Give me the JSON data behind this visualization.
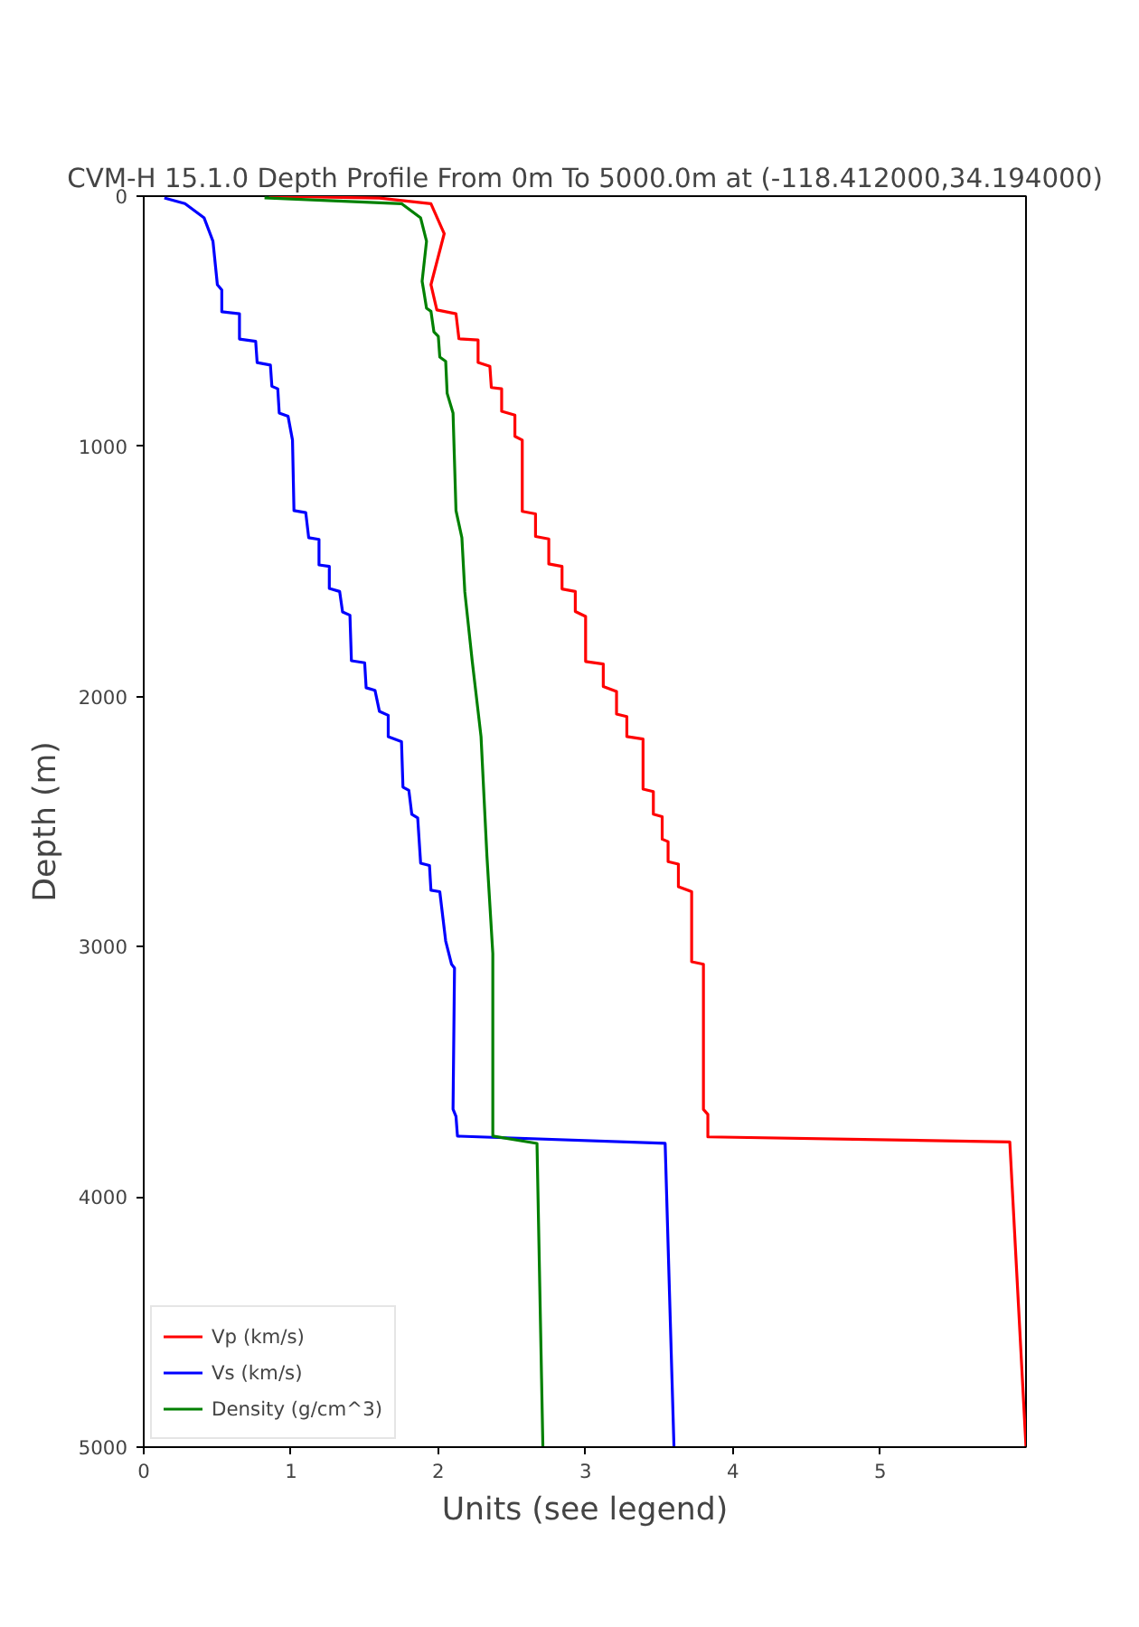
{
  "chart_data": {
    "type": "line",
    "title": "CVM-H 15.1.0 Depth Profile From 0m To 5000.0m at (-118.412000,34.194000)",
    "xlabel": "Units (see legend)",
    "ylabel": "Depth (m)",
    "xlim": [
      0,
      5.99
    ],
    "ylim": [
      5000,
      0
    ],
    "xticks": [
      0,
      1,
      2,
      3,
      4,
      5
    ],
    "yticks": [
      0,
      1000,
      2000,
      3000,
      4000,
      5000
    ],
    "grid": false,
    "legend": "bottom left",
    "marker": "none",
    "line_style": "solid",
    "series": [
      {
        "name": "Vp (km/s)",
        "color": "#ff0000",
        "x": [
          0.85,
          1.6,
          1.95,
          2.04,
          1.95,
          1.99,
          2.12,
          2.14,
          2.27,
          2.27,
          2.35,
          2.36,
          2.43,
          2.43,
          2.52,
          2.52,
          2.57,
          2.57,
          2.66,
          2.66,
          2.75,
          2.75,
          2.84,
          2.84,
          2.93,
          2.93,
          3.0,
          3.0,
          3.12,
          3.12,
          3.21,
          3.21,
          3.28,
          3.28,
          3.39,
          3.39,
          3.46,
          3.46,
          3.52,
          3.52,
          3.56,
          3.56,
          3.63,
          3.63,
          3.72,
          3.72,
          3.8,
          3.8,
          3.83,
          3.83,
          5.88,
          5.99
        ],
        "values": [
          0,
          8,
          30,
          150,
          354,
          455,
          470,
          570,
          575,
          665,
          680,
          765,
          770,
          860,
          875,
          960,
          975,
          1260,
          1270,
          1360,
          1370,
          1470,
          1480,
          1570,
          1580,
          1660,
          1680,
          1860,
          1870,
          1960,
          1980,
          2070,
          2080,
          2160,
          2170,
          2370,
          2380,
          2470,
          2480,
          2570,
          2580,
          2660,
          2670,
          2760,
          2780,
          3060,
          3070,
          3650,
          3670,
          3760,
          3780,
          5000
        ]
      },
      {
        "name": "Vs (km/s)",
        "color": "#0000ff",
        "x": [
          0.14,
          0.28,
          0.41,
          0.47,
          0.5,
          0.53,
          0.53,
          0.65,
          0.65,
          0.76,
          0.77,
          0.86,
          0.87,
          0.91,
          0.92,
          0.98,
          1.01,
          1.02,
          1.1,
          1.12,
          1.19,
          1.19,
          1.26,
          1.26,
          1.33,
          1.35,
          1.4,
          1.41,
          1.5,
          1.51,
          1.57,
          1.6,
          1.66,
          1.66,
          1.75,
          1.76,
          1.8,
          1.82,
          1.86,
          1.88,
          1.94,
          1.95,
          2.01,
          2.05,
          2.09,
          2.11,
          2.1,
          2.12,
          2.13,
          3.54,
          3.6
        ],
        "values": [
          7,
          30,
          87,
          180,
          354,
          375,
          462,
          470,
          571,
          580,
          665,
          675,
          760,
          770,
          867,
          880,
          975,
          1257,
          1265,
          1365,
          1372,
          1474,
          1480,
          1568,
          1580,
          1662,
          1675,
          1857,
          1865,
          1965,
          1975,
          2059,
          2075,
          2160,
          2180,
          2362,
          2375,
          2471,
          2485,
          2666,
          2675,
          2774,
          2780,
          2977,
          3070,
          3085,
          3649,
          3678,
          3757,
          3786,
          5000
        ]
      },
      {
        "name": "Density (g/cm^3)",
        "color": "#008000",
        "x": [
          0.82,
          1.75,
          1.88,
          1.92,
          1.89,
          1.9,
          1.92,
          1.95,
          1.97,
          2.0,
          2.01,
          2.05,
          2.06,
          2.1,
          2.12,
          2.16,
          2.18,
          2.23,
          2.27,
          2.29,
          2.33,
          2.37,
          2.37,
          2.67,
          2.71
        ],
        "values": [
          7,
          30,
          87,
          180,
          340,
          375,
          448,
          460,
          542,
          560,
          643,
          660,
          788,
          867,
          1257,
          1365,
          1582,
          1857,
          2059,
          2160,
          2637,
          3027,
          3757,
          3786,
          5000
        ]
      }
    ]
  }
}
